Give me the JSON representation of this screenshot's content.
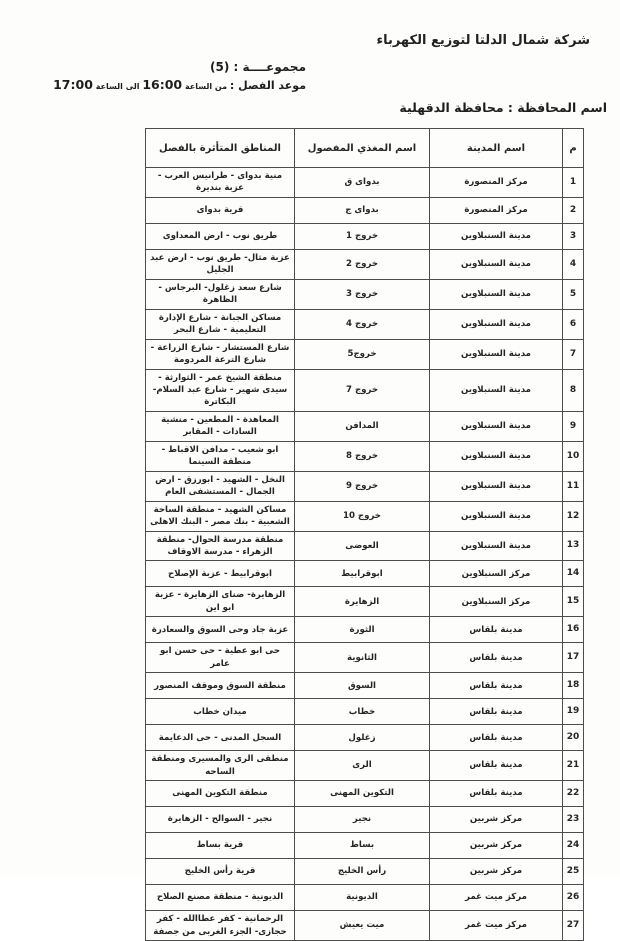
{
  "header": {
    "company": "شركة شمال الدلتا لتوزيع الكهرباء",
    "group_label": "مجموعــــة : (5)",
    "schedule_prefix": "موعد الفصل :",
    "schedule_from_label": "من الساعة",
    "schedule_from_time": "16:00",
    "schedule_to_label": "الى الساعة",
    "schedule_to_time": "17:00",
    "governorate": "اسم المحافظة : محافظة الدقهلية"
  },
  "table": {
    "columns": [
      "م",
      "اسم المدينة",
      "اسم المغذي المفصول",
      "المناطق المتأثرة بالفصل"
    ],
    "rows": [
      {
        "num": "1",
        "city": "مركز المنصورة",
        "feeder": "بدواى ق",
        "areas": "منية بدواى - طرانيس العرب - عزبة بنديرة"
      },
      {
        "num": "2",
        "city": "مركز المنصورة",
        "feeder": "بدواى ج",
        "areas": "قرية بدواى"
      },
      {
        "num": "3",
        "city": "مدينة السنبلاوين",
        "feeder": "خروج 1",
        "areas": "طريق نوب - ارض المعداوى"
      },
      {
        "num": "4",
        "city": "مدينة السنبلاوين",
        "feeder": "خروج 2",
        "areas": "عزبة مثال- طريق نوب - ارض عبد الجليل"
      },
      {
        "num": "5",
        "city": "مدينة السنبلاوين",
        "feeder": "خروج 3",
        "areas": "شارع سعد زغلول- البرجاس - الظاهرة"
      },
      {
        "num": "6",
        "city": "مدينة السنبلاوين",
        "feeder": "خروج 4",
        "areas": "مساكن الجبانة - شارع الإدارة التعليمية - شارع البحر"
      },
      {
        "num": "7",
        "city": "مدينة السنبلاوين",
        "feeder": "خروج5",
        "areas": "شارع المستشار - شارع الزراعة - شارع الترعة المردومة"
      },
      {
        "num": "8",
        "city": "مدينة السنبلاوين",
        "feeder": "خروج 7",
        "areas": "منطقة الشيخ عمر - الثوارثة - سيدى شهير - شارع عبد السلام- البكاترة"
      },
      {
        "num": "9",
        "city": "مدينة السنبلاوين",
        "feeder": "المدافن",
        "areas": "المعاهدة - المطعين - منشية السادات - المقابر"
      },
      {
        "num": "10",
        "city": "مدينة السنبلاوين",
        "feeder": "خروج 8",
        "areas": "ابو شعيب - مدافن الاقباط - منطقة السينما"
      },
      {
        "num": "11",
        "city": "مدينة السنبلاوين",
        "feeder": "خروج 9",
        "areas": "النخل - الشهيد - ابورزق - ارض الجمال - المستشفى العام"
      },
      {
        "num": "12",
        "city": "مدينة السنبلاوين",
        "feeder": "خروج 10",
        "areas": "مساكن الشهيد - منطقة الساحة الشعبية - بنك مصر - البنك الاهلى"
      },
      {
        "num": "13",
        "city": "مدينة السنبلاوين",
        "feeder": "العوضى",
        "areas": "منطقة مدرسة الحوال- منطقة الزهراء - مدرسة الاوقاف"
      },
      {
        "num": "14",
        "city": "مركز السنبلاوين",
        "feeder": "ابوقرابيط",
        "areas": "ابوقرابيط - عزبة الإصلاح"
      },
      {
        "num": "15",
        "city": "مركز السنبلاوين",
        "feeder": "الزهايرة",
        "areas": "الزهايرة- ضناى الزهايرة - عزبة ابو اين"
      },
      {
        "num": "16",
        "city": "مدينة بلقاس",
        "feeder": "الثورة",
        "areas": "عزبة جاد وحى السوق والسعادرة"
      },
      {
        "num": "17",
        "city": "مدينة بلقاس",
        "feeder": "الثانوية",
        "areas": "حى ابو عطية - حى حسن ابو عامر"
      },
      {
        "num": "18",
        "city": "مدينة بلقاس",
        "feeder": "السوق",
        "areas": "منطقة السوق وموقف المنصور"
      },
      {
        "num": "19",
        "city": "مدينة بلقاس",
        "feeder": "خطاب",
        "areas": "ميدان خطاب"
      },
      {
        "num": "20",
        "city": "مدينة بلقاس",
        "feeder": "زغلول",
        "areas": "السجل المدنى - حى الدعايمة"
      },
      {
        "num": "21",
        "city": "مدينة بلقاس",
        "feeder": "الرى",
        "areas": "منطقى الرى والمسيرى ومنطقة الساحه"
      },
      {
        "num": "22",
        "city": "مدينة بلقاس",
        "feeder": "التكوين المهنى",
        "areas": "منطقة التكوين المهنى"
      },
      {
        "num": "23",
        "city": "مركز شربين",
        "feeder": "نجير",
        "areas": "نجير - السوالح - الزهايرة"
      },
      {
        "num": "24",
        "city": "مركز شربين",
        "feeder": "بساط",
        "areas": "قرية بساط"
      },
      {
        "num": "25",
        "city": "مركز شربين",
        "feeder": "رأس الخليج",
        "areas": "قرية رأس الخليج"
      },
      {
        "num": "26",
        "city": "مركز ميت غمر",
        "feeder": "الديونية",
        "areas": "الديونية - منطقة مصنع الصلاح"
      },
      {
        "num": "27",
        "city": "مركز ميت غمر",
        "feeder": "ميت يعيش",
        "areas": "الرحمانية - كفر عطاالله - كفر حجازى- الجزء الغربى من جصفة"
      }
    ]
  }
}
